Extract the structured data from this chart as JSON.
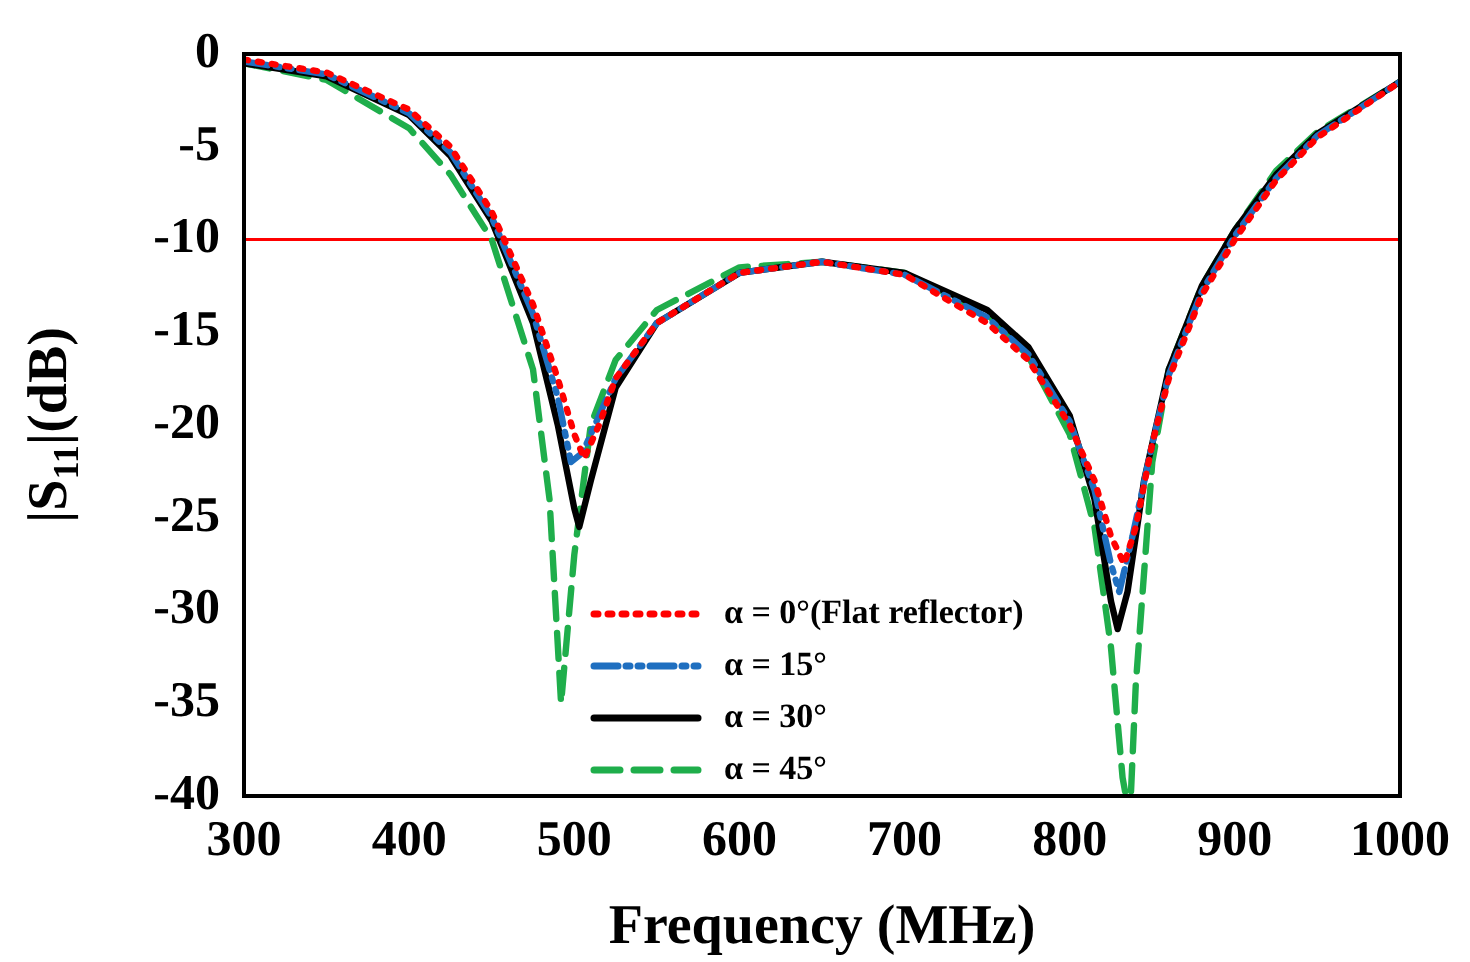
{
  "chart_data": {
    "type": "line",
    "xlabel": "Frequency (MHz)",
    "ylabel": "|S$_{11}$|(dB)",
    "xlim": [
      300,
      1000
    ],
    "xticks": [
      300,
      400,
      500,
      600,
      700,
      800,
      900,
      1000
    ],
    "ylim": [
      -40,
      0
    ],
    "yticks": [
      0,
      -5,
      -10,
      -15,
      -20,
      -25,
      -30,
      -35,
      -40
    ],
    "grid": false,
    "legend": "bottom",
    "marker": "none",
    "ref_lines": [
      {
        "axis": "y",
        "value": -10,
        "color": "#ff0000"
      }
    ],
    "series": [
      {
        "name": "α = 0°(Flat reflector)",
        "color": "#ff0000",
        "line_style": "dotted",
        "x": [
          300,
          350,
          400,
          425,
          450,
          475,
          490,
          500,
          506,
          515,
          525,
          550,
          600,
          650,
          700,
          750,
          775,
          800,
          815,
          825,
          833,
          840,
          850,
          860,
          880,
          900,
          925,
          950,
          1000
        ],
        "values": [
          -0.3,
          -1,
          -3,
          -5,
          -8.5,
          -13.5,
          -17.5,
          -20.5,
          -21.8,
          -20,
          -17.5,
          -14.5,
          -11.8,
          -11.2,
          -11.9,
          -14.5,
          -16.5,
          -20,
          -23,
          -26,
          -27.5,
          -25.5,
          -21,
          -17.5,
          -13,
          -10,
          -6.8,
          -4.5,
          -1.5
        ]
      },
      {
        "name": "α = 15°",
        "color": "#1f6fc0",
        "line_style": "dashdot",
        "x": [
          300,
          350,
          400,
          425,
          450,
          475,
          490,
          498,
          505,
          515,
          525,
          550,
          600,
          650,
          700,
          750,
          775,
          800,
          815,
          825,
          830,
          838,
          850,
          860,
          880,
          900,
          925,
          950,
          1000
        ],
        "values": [
          -0.4,
          -1.1,
          -3.2,
          -5.3,
          -8.8,
          -14,
          -18.5,
          -22,
          -21.5,
          -19.5,
          -17.5,
          -14.5,
          -11.8,
          -11.2,
          -11.9,
          -14.2,
          -16.2,
          -19.8,
          -23.5,
          -27.5,
          -29,
          -26,
          -21,
          -17.3,
          -12.8,
          -9.8,
          -6.7,
          -4.4,
          -1.5
        ]
      },
      {
        "name": "α = 30°",
        "color": "#000000",
        "line_style": "solid",
        "x": [
          300,
          350,
          400,
          425,
          450,
          475,
          490,
          500,
          503,
          510,
          525,
          550,
          600,
          650,
          700,
          750,
          775,
          800,
          815,
          825,
          829,
          835,
          845,
          860,
          880,
          900,
          925,
          950,
          1000
        ],
        "values": [
          -0.5,
          -1.2,
          -3.3,
          -5.5,
          -9,
          -14.5,
          -20,
          -24.5,
          -25.5,
          -23,
          -18,
          -14.5,
          -11.8,
          -11.2,
          -11.8,
          -13.8,
          -15.8,
          -19.5,
          -24,
          -29.5,
          -31,
          -29,
          -23,
          -17,
          -12.5,
          -9.5,
          -6.5,
          -4.3,
          -1.5
        ]
      },
      {
        "name": "α = 45°",
        "color": "#1fae4b",
        "line_style": "dashed",
        "x": [
          300,
          350,
          400,
          425,
          450,
          475,
          485,
          492,
          500,
          510,
          525,
          550,
          600,
          650,
          700,
          750,
          775,
          800,
          815,
          825,
          832,
          834,
          837,
          840,
          850,
          860,
          880,
          900,
          925,
          950,
          1000
        ],
        "values": [
          -0.5,
          -1.4,
          -4,
          -6.5,
          -10,
          -17,
          -24,
          -35,
          -27,
          -20,
          -16.5,
          -13.8,
          -11.5,
          -11.2,
          -11.8,
          -14,
          -16.3,
          -20.5,
          -25.5,
          -32,
          -39,
          -40,
          -40,
          -34,
          -22,
          -17,
          -12.5,
          -9.5,
          -6.3,
          -4.2,
          -1.5
        ]
      }
    ]
  }
}
